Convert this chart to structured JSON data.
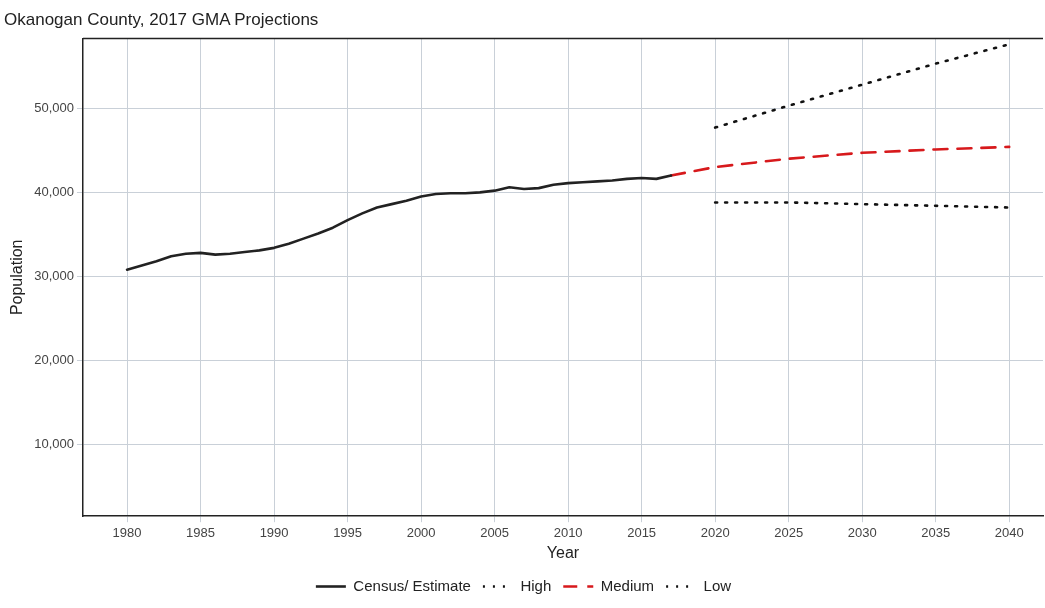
{
  "chart_data": {
    "type": "line",
    "title": "Okanogan County, 2017 GMA Projections",
    "xlabel": "Year",
    "ylabel": "Population",
    "xlim": [
      1977,
      2042.3
    ],
    "xticks": [
      1980,
      1985,
      1990,
      1995,
      2000,
      2005,
      2010,
      2015,
      2020,
      2025,
      2030,
      2035,
      2040
    ],
    "ylim": [
      1500,
      58300
    ],
    "yticks": [
      {
        "value": 10000,
        "label": "10,000"
      },
      {
        "value": 20000,
        "label": "20,000"
      },
      {
        "value": 30000,
        "label": "30,000"
      },
      {
        "value": 40000,
        "label": "40,000"
      },
      {
        "value": 50000,
        "label": "50,000"
      }
    ],
    "grid": true,
    "legend": "bottom",
    "marker": "none",
    "series": [
      {
        "name": "Census/ Estimate",
        "color": "#222222",
        "line_style": "solid",
        "x": [
          1980,
          1981,
          1982,
          1983,
          1984,
          1985,
          1986,
          1987,
          1988,
          1989,
          1990,
          1991,
          1992,
          1993,
          1994,
          1995,
          1996,
          1997,
          1998,
          1999,
          2000,
          2001,
          2002,
          2003,
          2004,
          2005,
          2006,
          2007,
          2008,
          2009,
          2010,
          2011,
          2012,
          2013,
          2014,
          2015,
          2016,
          2017
        ],
        "values": [
          30800,
          31300,
          31800,
          32400,
          32700,
          32800,
          32600,
          32700,
          32900,
          33100,
          33400,
          33900,
          34500,
          35100,
          35800,
          36700,
          37500,
          38200,
          38600,
          39000,
          39500,
          39800,
          39900,
          39900,
          40000,
          40200,
          40600,
          40400,
          40500,
          40900,
          41100,
          41200,
          41300,
          41400,
          41600,
          41700,
          41600,
          42000
        ]
      },
      {
        "name": "High",
        "color": "#111111",
        "line_style": "dotted",
        "x": [
          2020,
          2025,
          2030,
          2035,
          2040
        ],
        "values": [
          47700,
          50300,
          52800,
          55300,
          57600
        ]
      },
      {
        "name": "Medium",
        "color": "#d7191c",
        "line_style": "dashed",
        "x": [
          2017,
          2020,
          2025,
          2030,
          2035,
          2040
        ],
        "values": [
          42000,
          43000,
          44000,
          44700,
          45100,
          45400
        ]
      },
      {
        "name": "Low",
        "color": "#111111",
        "line_style": "dotted",
        "x": [
          2020,
          2025,
          2030,
          2035,
          2040
        ],
        "values": [
          38800,
          38800,
          38600,
          38400,
          38200
        ]
      }
    ]
  }
}
